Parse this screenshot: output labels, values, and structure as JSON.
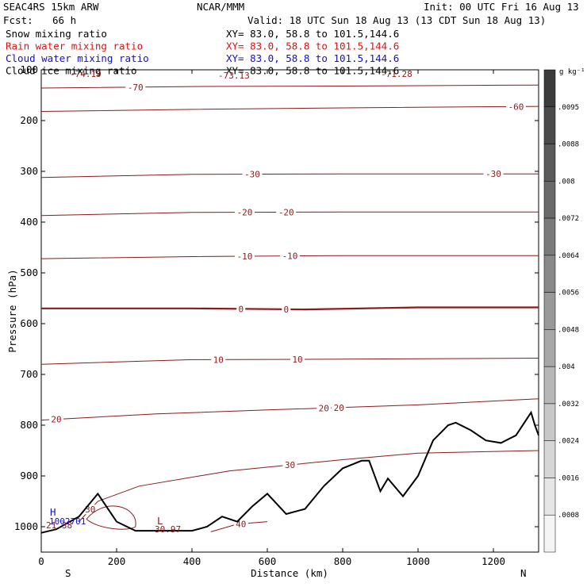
{
  "header": {
    "model": "SEAC4RS 15km ARW",
    "org": "NCAR/MMM",
    "init": "Init: 00 UTC Fri 16 Aug 13",
    "fcst_label": "Fcst:",
    "fcst_value": "66 h",
    "valid": "Valid: 18 UTC Sun 18 Aug 13 (13 CDT Sun 18 Aug 13)",
    "fields": [
      {
        "name": "Snow mixing ratio",
        "xy": "XY=  83.0, 58.8 to 101.5,144.6",
        "color": "#000000"
      },
      {
        "name": "Rain water mixing ratio",
        "xy": "XY=  83.0, 58.8 to 101.5,144.6",
        "color": "#e01010"
      },
      {
        "name": "Cloud water mixing ratio",
        "xy": "XY=  83.0, 58.8 to 101.5,144.6",
        "color": "#1010d0"
      },
      {
        "name": "Cloud ice mixing ratio",
        "xy": "XY=  83.0, 58.8 to 101.5,144.6",
        "color": "#000000"
      }
    ]
  },
  "colorbar": {
    "unit": "g kg⁻¹",
    "labels": [
      ".0095",
      ".0088",
      ".008",
      ".0072",
      ".0064",
      ".0056",
      ".0048",
      ".004",
      ".0032",
      ".0024",
      ".0016",
      ".0008"
    ]
  },
  "annotations": {
    "high_letter": "H",
    "high_value_a": "1002701",
    "high_value_b": "21.38",
    "low_letter": "L",
    "low_value": "30.97",
    "top_left": "-74.19",
    "top_mid": "-73.13",
    "top_right": "-71.28"
  },
  "chart_data": {
    "type": "line",
    "title": "",
    "xlabel": "Distance (km)",
    "ylabel": "Pressure (hPa)",
    "xlim": [
      0,
      1320
    ],
    "ylim": [
      1050,
      100
    ],
    "xticks": [
      0,
      200,
      400,
      600,
      800,
      1000,
      1200
    ],
    "yticks": [
      100,
      200,
      300,
      400,
      500,
      600,
      700,
      800,
      900,
      1000
    ],
    "x_end_labels": {
      "left": "S",
      "right": "N"
    },
    "contour_color": "#8b1a1a",
    "temperature_contours": [
      {
        "level": -70,
        "labels": [
          {
            "x": 250,
            "text": "-70"
          }
        ],
        "points": [
          [
            0,
            136
          ],
          [
            400,
            133
          ],
          [
            800,
            132
          ],
          [
            1320,
            130
          ]
        ]
      },
      {
        "level": -60,
        "labels": [
          {
            "x": 1260,
            "text": "-60"
          }
        ],
        "points": [
          [
            0,
            182
          ],
          [
            400,
            178
          ],
          [
            800,
            175
          ],
          [
            1320,
            172
          ]
        ]
      },
      {
        "level": -30,
        "labels": [
          {
            "x": 560,
            "text": "-30"
          },
          {
            "x": 1200,
            "text": "-30"
          }
        ],
        "points": [
          [
            0,
            312
          ],
          [
            400,
            306
          ],
          [
            800,
            305
          ],
          [
            1320,
            305
          ]
        ]
      },
      {
        "level": -20,
        "labels": [
          {
            "x": 540,
            "text": "-20"
          },
          {
            "x": 650,
            "text": "-20"
          }
        ],
        "points": [
          [
            0,
            387
          ],
          [
            400,
            381
          ],
          [
            800,
            380
          ],
          [
            1320,
            380
          ]
        ]
      },
      {
        "level": -10,
        "labels": [
          {
            "x": 540,
            "text": "-10"
          },
          {
            "x": 660,
            "text": "-10"
          }
        ],
        "points": [
          [
            0,
            472
          ],
          [
            400,
            468
          ],
          [
            800,
            466
          ],
          [
            1320,
            466
          ]
        ]
      },
      {
        "level": 0,
        "labels": [
          {
            "x": 530,
            "text": "0"
          },
          {
            "x": 650,
            "text": "0"
          }
        ],
        "points": [
          [
            0,
            570
          ],
          [
            400,
            570
          ],
          [
            700,
            572
          ],
          [
            1000,
            568
          ],
          [
            1320,
            568
          ]
        ]
      },
      {
        "level": 10,
        "labels": [
          {
            "x": 470,
            "text": "10"
          },
          {
            "x": 680,
            "text": "10"
          }
        ],
        "points": [
          [
            0,
            680
          ],
          [
            400,
            671
          ],
          [
            800,
            670
          ],
          [
            1320,
            668
          ]
        ]
      },
      {
        "level": 20,
        "labels": [
          {
            "x": 40,
            "text": "20"
          },
          {
            "x": 750,
            "text": "20"
          },
          {
            "x": 790,
            "text": "20"
          }
        ],
        "points": [
          [
            0,
            790
          ],
          [
            300,
            778
          ],
          [
            600,
            770
          ],
          [
            1000,
            760
          ],
          [
            1320,
            748
          ]
        ]
      },
      {
        "level": 30,
        "labels": [
          {
            "x": 130,
            "text": "30"
          },
          {
            "x": 660,
            "text": "30"
          }
        ],
        "points": [
          [
            100,
            990
          ],
          [
            150,
            950
          ],
          [
            260,
            920
          ],
          [
            500,
            890
          ],
          [
            800,
            868
          ],
          [
            1000,
            855
          ],
          [
            1320,
            850
          ]
        ]
      },
      {
        "level": 40,
        "labels": [
          {
            "x": 530,
            "text": "40"
          }
        ],
        "points": [
          [
            450,
            1010
          ],
          [
            520,
            995
          ],
          [
            600,
            990
          ]
        ]
      }
    ],
    "terrain": {
      "name": "",
      "x": [
        0,
        40,
        100,
        150,
        200,
        250,
        300,
        350,
        400,
        440,
        480,
        520,
        560,
        600,
        650,
        700,
        750,
        800,
        850,
        870,
        900,
        920,
        960,
        1000,
        1040,
        1080,
        1100,
        1140,
        1180,
        1220,
        1260,
        1300,
        1310,
        1320
      ],
      "pressure": [
        1012,
        1005,
        980,
        935,
        990,
        1008,
        1008,
        1008,
        1008,
        1000,
        980,
        990,
        960,
        935,
        975,
        965,
        920,
        885,
        870,
        870,
        930,
        905,
        940,
        900,
        830,
        800,
        795,
        810,
        830,
        835,
        820,
        775,
        800,
        820
      ]
    }
  }
}
